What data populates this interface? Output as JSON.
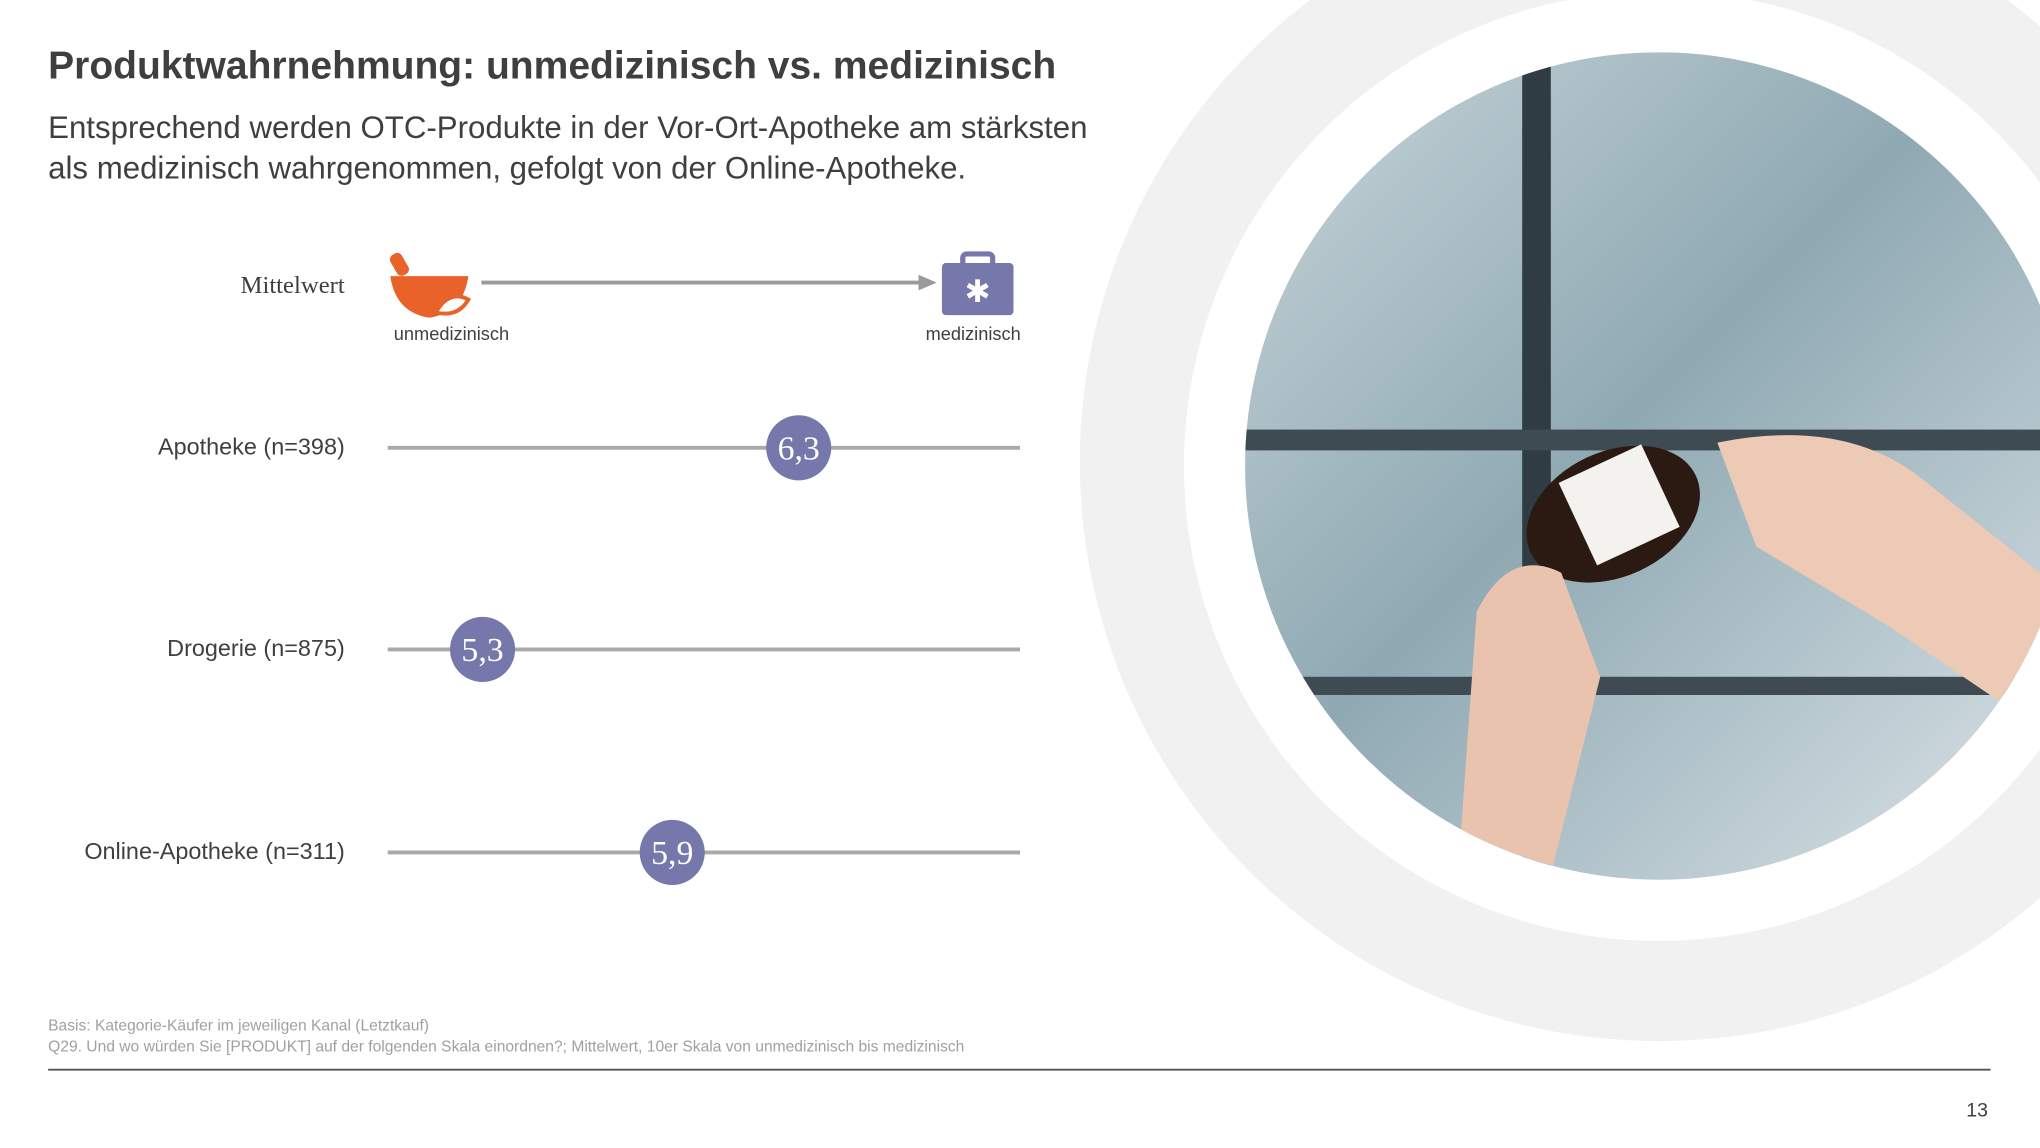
{
  "chart_data": {
    "type": "dot",
    "title": "Produktwahrnehmung: unmedizinisch vs. medizinisch",
    "subtitle": [
      "Entsprechend werden OTC-Produkte in der Vor-Ort-Apotheke am stärksten",
      "als medizinisch wahrgenommen, gefolgt von der Online-Apotheke."
    ],
    "legend_label": "Mittelwert",
    "scale_labels": [
      "unmedizinisch",
      "medizinisch"
    ],
    "categories": [
      "Apotheke (n=398)",
      "Drogerie (n=875)",
      "Online-Apotheke (n=311)"
    ],
    "values": [
      6.3,
      5.3,
      5.9
    ],
    "value_labels": [
      "6,3",
      "5,3",
      "5,9"
    ],
    "color": "#7677aa",
    "xlim": [
      5,
      7
    ]
  },
  "footnotes": [
    "Basis: Kategorie-Käufer im jeweiligen Kanal (Letztkauf)",
    "Q29. Und wo würden Sie [PRODUKT] auf der folgenden Skala einordnen?; Mittelwert, 10er Skala von unmedizinisch bis medizinisch"
  ],
  "page_number": "13"
}
